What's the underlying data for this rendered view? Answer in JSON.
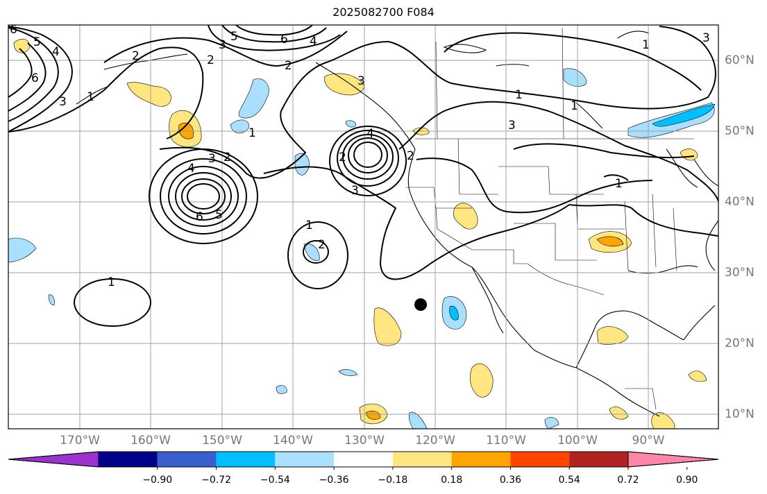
{
  "title": "2025082700 F084",
  "lon_labels": [
    "170°W",
    "160°W",
    "150°W",
    "140°W",
    "130°W",
    "120°W",
    "110°W",
    "100°W",
    "90°W"
  ],
  "lat_labels": [
    "60°N",
    "50°N",
    "40°N",
    "30°N",
    "20°N",
    "10°N"
  ],
  "colorbar": {
    "ticks": [
      "−0.90",
      "−0.72",
      "−0.54",
      "−0.36",
      "−0.18",
      "0.18",
      "0.36",
      "0.54",
      "0.72",
      "0.90"
    ],
    "colors": [
      "#9933cc",
      "#000088",
      "#3a5fcd",
      "#00bfff",
      "#aadfff",
      "#ffffff",
      "#ffe680",
      "#ffa500",
      "#ff4500",
      "#b22222",
      "#ff88aa"
    ]
  },
  "contour_labels": [
    "6",
    "5",
    "4",
    "3",
    "2",
    "1",
    "6",
    "5",
    "4",
    "3",
    "2",
    "1",
    "2",
    "1",
    "3",
    "2",
    "1",
    "6",
    "4",
    "2",
    "3",
    "1",
    "3",
    "5",
    "4",
    "3",
    "2",
    "6",
    "1",
    "2",
    "1",
    "3",
    "1"
  ],
  "marker": "storm-center"
}
